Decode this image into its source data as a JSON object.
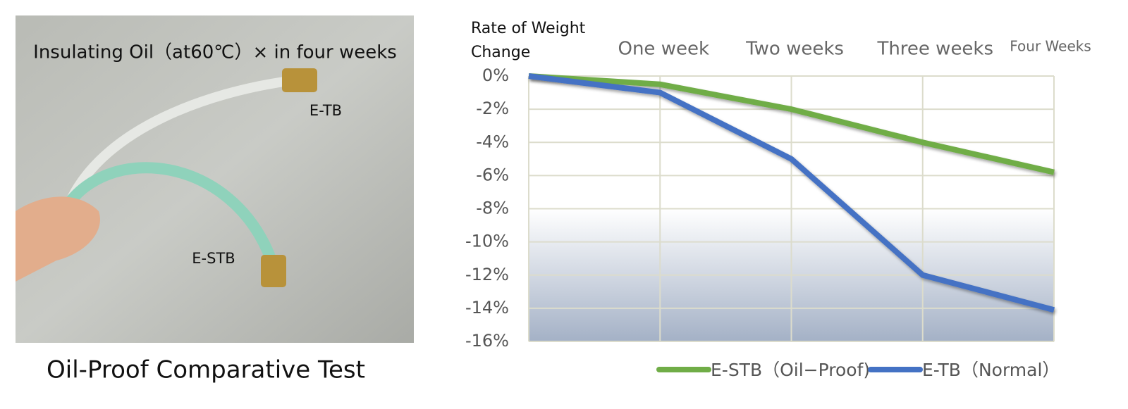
{
  "photo": {
    "title": "Insulating Oil（at60℃）× in four weeks",
    "labels": [
      "E-TB",
      "E-STB"
    ],
    "caption": "Oil-Proof Comparative  Test"
  },
  "chart_data": {
    "type": "line",
    "y_label": "Rate of Weight Change",
    "categories": [
      null,
      "One week",
      "Two weeks",
      "Three weeks",
      "Four Weeks"
    ],
    "series": [
      {
        "name": "E-STB（Oil−Proof)",
        "color": "#70ad47",
        "values": [
          0,
          -0.5,
          -2,
          -4,
          -5.8
        ]
      },
      {
        "name": "E-TB（Normal）",
        "color": "#4472c4",
        "values": [
          0,
          -1,
          -5,
          -12,
          -14.1
        ]
      }
    ],
    "ylim": [
      -16,
      0
    ],
    "yticks": [
      {
        "value": 0,
        "label": "0%"
      },
      {
        "value": -2,
        "label": "-2%"
      },
      {
        "value": -4,
        "label": "-4%"
      },
      {
        "value": -6,
        "label": "-6%"
      },
      {
        "value": -8,
        "label": "-8%"
      },
      {
        "value": -10,
        "label": "-10%"
      },
      {
        "value": -12,
        "label": "-12%"
      },
      {
        "value": -14,
        "label": "-14%"
      },
      {
        "value": -16,
        "label": "-16%"
      }
    ],
    "grid": true
  }
}
